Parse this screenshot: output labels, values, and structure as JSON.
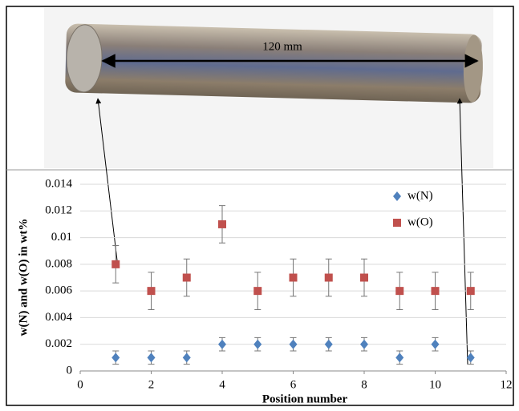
{
  "chart_data": {
    "type": "scatter",
    "annotation": "120 mm",
    "xlabel": "Position number",
    "ylabel": "w(N) and w(O) in wt%",
    "x": [
      1,
      2,
      3,
      4,
      5,
      6,
      7,
      8,
      9,
      10,
      11
    ],
    "series": [
      {
        "name": "w(N)",
        "color": "#4f81bd",
        "marker": "diamond",
        "values": [
          0.001,
          0.001,
          0.001,
          0.002,
          0.002,
          0.002,
          0.002,
          0.002,
          0.001,
          0.002,
          0.001
        ],
        "errors": [
          0.0005,
          0.0005,
          0.0005,
          0.0005,
          0.0005,
          0.0005,
          0.0005,
          0.0005,
          0.0005,
          0.0005,
          0.0005
        ]
      },
      {
        "name": "w(O)",
        "color": "#c0504d",
        "marker": "square",
        "values": [
          0.008,
          0.006,
          0.007,
          0.011,
          0.006,
          0.007,
          0.007,
          0.007,
          0.006,
          0.006,
          0.006
        ],
        "errors": [
          0.0014,
          0.0014,
          0.0014,
          0.0014,
          0.0014,
          0.0014,
          0.0014,
          0.0014,
          0.0014,
          0.0014,
          0.0014
        ]
      }
    ],
    "xlim": [
      0,
      12
    ],
    "xticks": [
      0,
      2,
      4,
      6,
      8,
      10,
      12
    ],
    "ylim": [
      0,
      0.014
    ],
    "yticks": [
      0,
      0.002,
      0.004,
      0.006,
      0.008,
      0.01,
      0.012,
      0.014
    ],
    "grid": true,
    "legend": "upper right"
  }
}
